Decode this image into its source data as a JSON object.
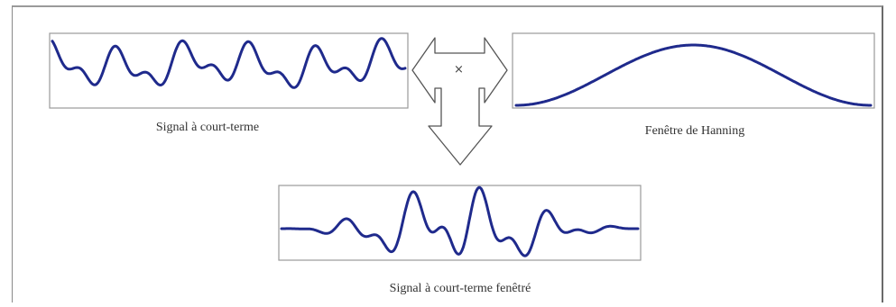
{
  "captions": {
    "signal": "Signal à court-terme",
    "window": "Fenêtre de Hanning",
    "windowed": "Signal à court-terme fenêtré"
  },
  "operator": {
    "symbol": "×",
    "icon": "multiply-icon"
  },
  "colors": {
    "curve": "#1f2a8c",
    "panel_border": "#9a9a9a",
    "arrow_stroke": "#555555",
    "text": "#333333"
  }
}
